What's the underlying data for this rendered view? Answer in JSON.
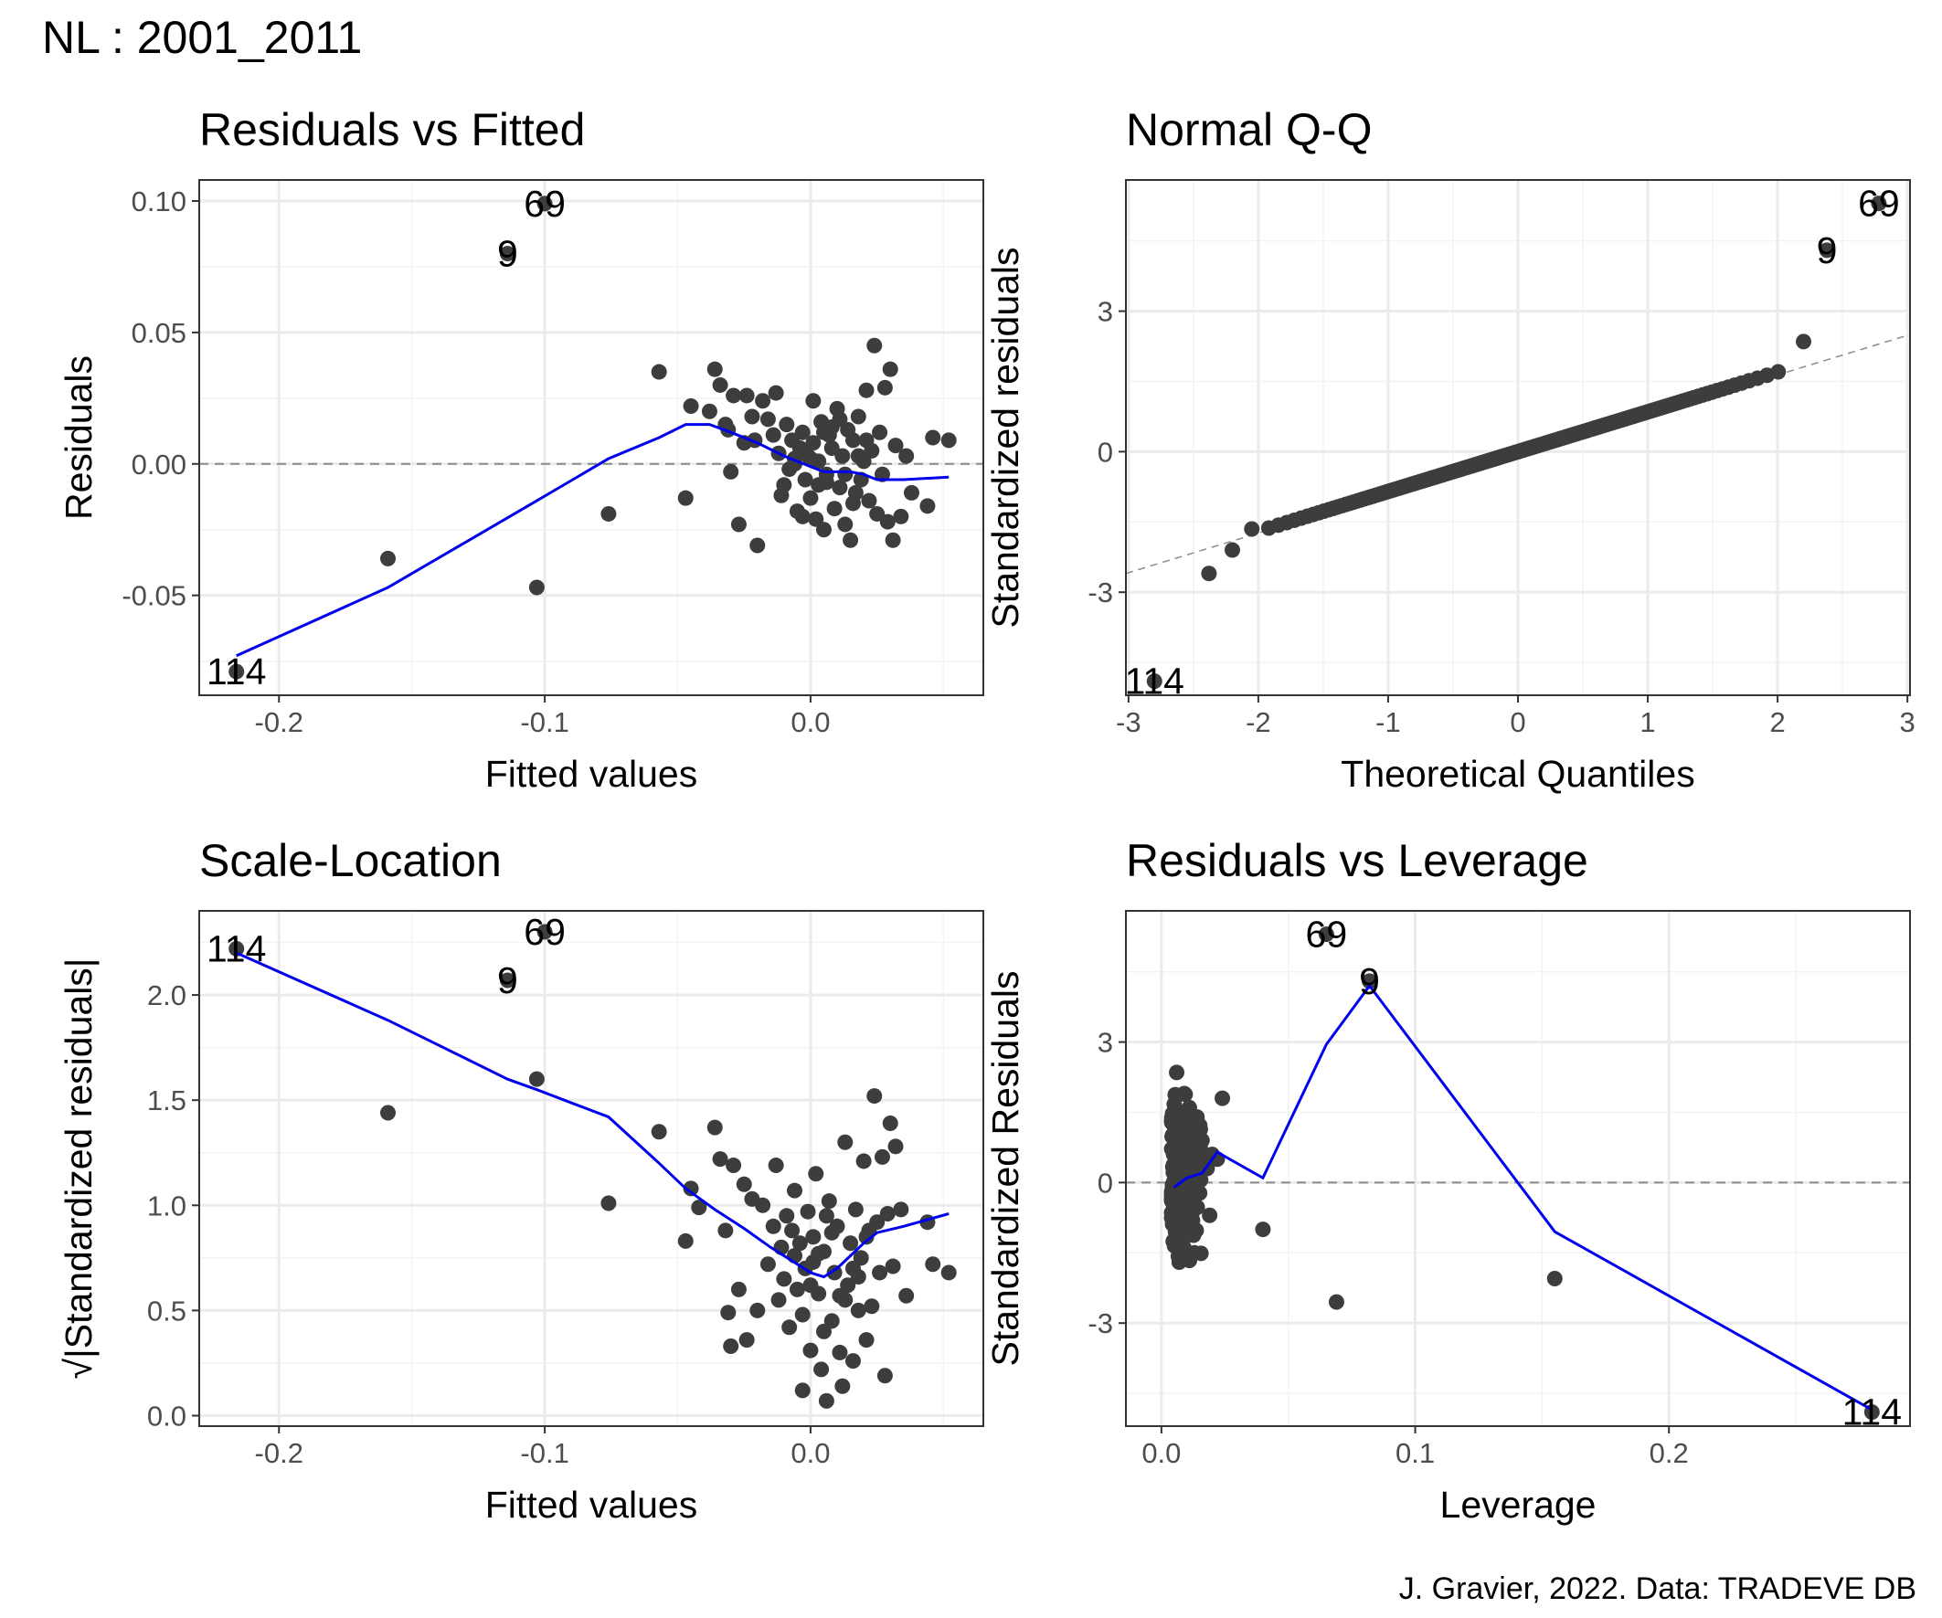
{
  "page": {
    "title": "NL : 2001_2011",
    "caption": "J. Gravier, 2022. Data: TRADEVE DB",
    "colors": {
      "points": "#3d3d3d",
      "smooth": "#0000ee",
      "grid": "#ebebeb",
      "refline": "#8c8c8c"
    }
  },
  "chart_data": [
    {
      "type": "scatter",
      "title": "Residuals vs Fitted",
      "xlabel": "Fitted values",
      "ylabel": "Residuals",
      "xlim": [
        -0.23,
        0.065
      ],
      "ylim": [
        -0.088,
        0.108
      ],
      "xticks": [
        -0.2,
        -0.1,
        0.0
      ],
      "xtick_labels": [
        "-0.2",
        "-0.1",
        "0.0"
      ],
      "yticks": [
        -0.05,
        0.0,
        0.05,
        0.1
      ],
      "ytick_labels": [
        "-0.05",
        "0.00",
        "0.05",
        "0.10"
      ],
      "grid": true,
      "hline": {
        "y": 0,
        "style": "dashed"
      },
      "points": [
        [
          -0.216,
          -0.079
        ],
        [
          -0.159,
          -0.036
        ],
        [
          -0.103,
          -0.047
        ],
        [
          -0.114,
          0.08
        ],
        [
          -0.1,
          0.099
        ],
        [
          -0.076,
          -0.019
        ],
        [
          -0.057,
          0.035
        ],
        [
          -0.047,
          -0.013
        ],
        [
          -0.045,
          0.022
        ],
        [
          -0.038,
          0.02
        ],
        [
          -0.036,
          0.036
        ],
        [
          -0.034,
          0.03
        ],
        [
          -0.032,
          0.015
        ],
        [
          -0.031,
          0.013
        ],
        [
          -0.03,
          -0.003
        ],
        [
          -0.029,
          0.026
        ],
        [
          -0.027,
          -0.023
        ],
        [
          -0.025,
          0.008
        ],
        [
          -0.024,
          0.026
        ],
        [
          -0.022,
          0.018
        ],
        [
          -0.021,
          0.009
        ],
        [
          -0.02,
          -0.031
        ],
        [
          -0.018,
          0.024
        ],
        [
          -0.016,
          0.017
        ],
        [
          -0.014,
          0.011
        ],
        [
          -0.013,
          0.027
        ],
        [
          -0.012,
          0.004
        ],
        [
          -0.011,
          -0.012
        ],
        [
          -0.01,
          -0.008
        ],
        [
          -0.009,
          0.015
        ],
        [
          -0.008,
          -0.002
        ],
        [
          -0.007,
          0.009
        ],
        [
          -0.006,
          0.002
        ],
        [
          -0.005,
          -0.018
        ],
        [
          -0.004,
          0.006
        ],
        [
          -0.003,
          0.012
        ],
        [
          -0.002,
          -0.006
        ],
        [
          -0.001,
          0.003
        ],
        [
          0.0,
          -0.013
        ],
        [
          0.001,
          0.008
        ],
        [
          0.002,
          -0.021
        ],
        [
          0.003,
          0.001
        ],
        [
          0.004,
          0.016
        ],
        [
          0.005,
          -0.025
        ],
        [
          0.006,
          -0.004
        ],
        [
          0.007,
          0.011
        ],
        [
          0.008,
          0.006
        ],
        [
          0.009,
          -0.017
        ],
        [
          0.01,
          0.021
        ],
        [
          0.011,
          -0.009
        ],
        [
          0.012,
          0.003
        ],
        [
          0.013,
          -0.023
        ],
        [
          0.014,
          0.013
        ],
        [
          0.015,
          -0.029
        ],
        [
          0.016,
          0.009
        ],
        [
          0.017,
          -0.011
        ],
        [
          0.018,
          0.018
        ],
        [
          0.019,
          -0.006
        ],
        [
          0.02,
          0.001
        ],
        [
          0.021,
          0.028
        ],
        [
          0.022,
          -0.014
        ],
        [
          0.023,
          0.005
        ],
        [
          0.024,
          0.045
        ],
        [
          0.025,
          -0.019
        ],
        [
          0.026,
          0.012
        ],
        [
          0.027,
          -0.004
        ],
        [
          0.028,
          0.029
        ],
        [
          0.029,
          -0.022
        ],
        [
          0.03,
          0.036
        ],
        [
          0.031,
          -0.029
        ],
        [
          0.032,
          0.007
        ],
        [
          0.034,
          -0.02
        ],
        [
          0.036,
          0.003
        ],
        [
          0.038,
          -0.011
        ],
        [
          0.044,
          -0.016
        ],
        [
          0.046,
          0.01
        ],
        [
          0.052,
          0.009
        ],
        [
          -0.003,
          -0.02
        ],
        [
          0.001,
          0.024
        ],
        [
          0.006,
          -0.007
        ],
        [
          0.011,
          0.017
        ],
        [
          0.016,
          -0.015
        ],
        [
          0.021,
          0.009
        ],
        [
          0.0,
          0.002
        ],
        [
          0.003,
          -0.008
        ],
        [
          0.008,
          0.014
        ],
        [
          0.013,
          -0.004
        ],
        [
          0.018,
          0.003
        ],
        [
          -0.006,
          0.0
        ],
        [
          0.005,
          0.012
        ]
      ],
      "smooth": [
        [
          -0.216,
          -0.073
        ],
        [
          -0.159,
          -0.047
        ],
        [
          -0.103,
          -0.014
        ],
        [
          -0.076,
          0.002
        ],
        [
          -0.057,
          0.01
        ],
        [
          -0.047,
          0.015
        ],
        [
          -0.038,
          0.015
        ],
        [
          -0.03,
          0.012
        ],
        [
          -0.02,
          0.008
        ],
        [
          -0.01,
          0.003
        ],
        [
          0.0,
          -0.001
        ],
        [
          0.005,
          -0.003
        ],
        [
          0.01,
          -0.003
        ],
        [
          0.015,
          -0.003
        ],
        [
          0.02,
          -0.004
        ],
        [
          0.025,
          -0.006
        ],
        [
          0.035,
          -0.006
        ],
        [
          0.052,
          -0.005
        ]
      ],
      "labels": [
        {
          "text": "114",
          "x": -0.216,
          "y": -0.079
        },
        {
          "text": "9",
          "x": -0.114,
          "y": 0.08
        },
        {
          "text": "69",
          "x": -0.1,
          "y": 0.099
        }
      ]
    },
    {
      "type": "scatter",
      "title": "Normal Q-Q",
      "xlabel": "Theoretical Quantiles",
      "ylabel": "Standardized residuals",
      "xlim": [
        -3.02,
        3.02
      ],
      "ylim": [
        -5.2,
        5.8
      ],
      "xticks": [
        -3,
        -2,
        -1,
        0,
        1,
        2,
        3
      ],
      "xtick_labels": [
        "-3",
        "-2",
        "-1",
        "0",
        "1",
        "2",
        "3"
      ],
      "yticks": [
        -3,
        0,
        3
      ],
      "ytick_labels": [
        "-3",
        "0",
        "3"
      ],
      "grid": true,
      "refline": {
        "x0": -3.02,
        "y0": -2.6,
        "x1": 3.02,
        "y1": 2.5,
        "style": "dashed"
      },
      "qq": {
        "n": 200,
        "sd": 0.85
      },
      "extra_points": [
        [
          -2.8,
          -4.9
        ],
        [
          -2.38,
          -2.6
        ],
        [
          -2.2,
          -2.1
        ],
        [
          -2.05,
          -1.65
        ],
        [
          2.2,
          2.35
        ],
        [
          2.38,
          4.3
        ],
        [
          2.78,
          5.3
        ]
      ],
      "labels": [
        {
          "text": "114",
          "x": -2.8,
          "y": -4.9
        },
        {
          "text": "9",
          "x": 2.38,
          "y": 4.3
        },
        {
          "text": "69",
          "x": 2.78,
          "y": 5.3
        }
      ]
    },
    {
      "type": "scatter",
      "title": "Scale-Location",
      "xlabel": "Fitted values",
      "ylabel": "√|Standardized residuals|",
      "xlim": [
        -0.23,
        0.065
      ],
      "ylim": [
        -0.05,
        2.4
      ],
      "xticks": [
        -0.2,
        -0.1,
        0.0
      ],
      "xtick_labels": [
        "-0.2",
        "-0.1",
        "0.0"
      ],
      "yticks": [
        0.0,
        0.5,
        1.0,
        1.5,
        2.0
      ],
      "ytick_labels": [
        "0.0",
        "0.5",
        "1.0",
        "1.5",
        "2.0"
      ],
      "grid": true,
      "points": [
        [
          -0.216,
          2.22
        ],
        [
          -0.159,
          1.44
        ],
        [
          -0.103,
          1.6
        ],
        [
          -0.114,
          2.07
        ],
        [
          -0.1,
          2.3
        ],
        [
          -0.076,
          1.01
        ],
        [
          -0.057,
          1.35
        ],
        [
          -0.047,
          0.83
        ],
        [
          -0.045,
          1.08
        ],
        [
          -0.042,
          0.99
        ],
        [
          -0.036,
          1.37
        ],
        [
          -0.034,
          1.22
        ],
        [
          -0.032,
          0.88
        ],
        [
          -0.031,
          0.49
        ],
        [
          -0.03,
          0.33
        ],
        [
          -0.029,
          1.19
        ],
        [
          -0.027,
          0.6
        ],
        [
          -0.025,
          1.1
        ],
        [
          -0.024,
          0.36
        ],
        [
          -0.022,
          1.03
        ],
        [
          -0.02,
          0.5
        ],
        [
          -0.018,
          1.0
        ],
        [
          -0.016,
          0.72
        ],
        [
          -0.014,
          0.9
        ],
        [
          -0.013,
          1.19
        ],
        [
          -0.012,
          0.55
        ],
        [
          -0.011,
          0.8
        ],
        [
          -0.01,
          0.65
        ],
        [
          -0.009,
          0.95
        ],
        [
          -0.008,
          0.42
        ],
        [
          -0.007,
          0.88
        ],
        [
          -0.006,
          0.76
        ],
        [
          -0.005,
          0.6
        ],
        [
          -0.004,
          0.82
        ],
        [
          -0.003,
          0.12
        ],
        [
          -0.002,
          0.7
        ],
        [
          -0.001,
          0.97
        ],
        [
          0.0,
          0.31
        ],
        [
          0.001,
          0.85
        ],
        [
          0.002,
          1.15
        ],
        [
          0.003,
          0.58
        ],
        [
          0.004,
          0.22
        ],
        [
          0.005,
          0.78
        ],
        [
          0.006,
          0.07
        ],
        [
          0.007,
          1.02
        ],
        [
          0.008,
          0.45
        ],
        [
          0.009,
          0.68
        ],
        [
          0.01,
          0.9
        ],
        [
          0.011,
          0.3
        ],
        [
          0.012,
          0.14
        ],
        [
          0.013,
          1.3
        ],
        [
          0.014,
          0.62
        ],
        [
          0.015,
          0.82
        ],
        [
          0.016,
          0.26
        ],
        [
          0.017,
          0.98
        ],
        [
          0.018,
          0.5
        ],
        [
          0.019,
          0.75
        ],
        [
          0.02,
          1.21
        ],
        [
          0.021,
          0.36
        ],
        [
          0.022,
          0.88
        ],
        [
          0.023,
          0.52
        ],
        [
          0.024,
          1.52
        ],
        [
          0.025,
          0.92
        ],
        [
          0.026,
          0.68
        ],
        [
          0.027,
          1.23
        ],
        [
          0.028,
          0.19
        ],
        [
          0.029,
          0.96
        ],
        [
          0.03,
          1.39
        ],
        [
          0.031,
          0.71
        ],
        [
          0.032,
          1.28
        ],
        [
          0.034,
          0.98
        ],
        [
          0.036,
          0.57
        ],
        [
          0.044,
          0.92
        ],
        [
          0.046,
          0.72
        ],
        [
          0.052,
          0.68
        ],
        [
          -0.003,
          0.48
        ],
        [
          0.001,
          0.73
        ],
        [
          0.006,
          0.95
        ],
        [
          0.011,
          0.57
        ],
        [
          0.016,
          0.7
        ],
        [
          0.021,
          0.85
        ],
        [
          0.0,
          0.62
        ],
        [
          0.003,
          0.77
        ],
        [
          0.008,
          0.87
        ],
        [
          0.013,
          0.55
        ],
        [
          0.018,
          0.66
        ],
        [
          0.005,
          0.4
        ],
        [
          -0.006,
          1.07
        ]
      ],
      "smooth": [
        [
          -0.216,
          2.2
        ],
        [
          -0.159,
          1.88
        ],
        [
          -0.114,
          1.6
        ],
        [
          -0.103,
          1.55
        ],
        [
          -0.076,
          1.42
        ],
        [
          -0.057,
          1.2
        ],
        [
          -0.047,
          1.08
        ],
        [
          -0.036,
          0.98
        ],
        [
          -0.025,
          0.89
        ],
        [
          -0.015,
          0.8
        ],
        [
          -0.005,
          0.72
        ],
        [
          0.0,
          0.68
        ],
        [
          0.005,
          0.66
        ],
        [
          0.01,
          0.7
        ],
        [
          0.015,
          0.76
        ],
        [
          0.02,
          0.82
        ],
        [
          0.025,
          0.87
        ],
        [
          0.035,
          0.9
        ],
        [
          0.052,
          0.96
        ]
      ],
      "labels": [
        {
          "text": "114",
          "x": -0.216,
          "y": 2.22
        },
        {
          "text": "9",
          "x": -0.114,
          "y": 2.07
        },
        {
          "text": "69",
          "x": -0.1,
          "y": 2.3
        }
      ]
    },
    {
      "type": "scatter",
      "title": "Residuals vs Leverage",
      "xlabel": "Leverage",
      "ylabel": "Standardized Residuals",
      "xlim": [
        -0.014,
        0.295
      ],
      "ylim": [
        -5.2,
        5.8
      ],
      "xticks": [
        0.0,
        0.1,
        0.2
      ],
      "xtick_labels": [
        "0.0",
        "0.1",
        "0.2"
      ],
      "yticks": [
        -3,
        0,
        3
      ],
      "ytick_labels": [
        "-3",
        "0",
        "3"
      ],
      "grid": true,
      "hline": {
        "y": 0,
        "style": "dashed"
      },
      "cluster": {
        "x_min": 0.004,
        "x_max": 0.016,
        "y_min": -1.7,
        "y_max": 1.9,
        "n": 160
      },
      "points": [
        [
          0.006,
          2.35
        ],
        [
          0.009,
          1.9
        ],
        [
          0.011,
          1.6
        ],
        [
          0.014,
          1.4
        ],
        [
          0.015,
          1.2
        ],
        [
          0.016,
          0.9
        ],
        [
          0.017,
          0.6
        ],
        [
          0.018,
          0.3
        ],
        [
          0.019,
          -0.7
        ],
        [
          0.02,
          0.6
        ],
        [
          0.022,
          0.5
        ],
        [
          0.024,
          1.8
        ],
        [
          0.013,
          -1.5
        ],
        [
          0.007,
          -1.7
        ],
        [
          0.04,
          -1.0
        ],
        [
          0.069,
          -2.55
        ],
        [
          0.065,
          5.3
        ],
        [
          0.082,
          4.3
        ],
        [
          0.155,
          -2.05
        ],
        [
          0.28,
          -4.9
        ]
      ],
      "smooth": [
        [
          0.005,
          -0.1
        ],
        [
          0.01,
          0.1
        ],
        [
          0.016,
          0.2
        ],
        [
          0.022,
          0.65
        ],
        [
          0.04,
          0.1
        ],
        [
          0.065,
          2.95
        ],
        [
          0.082,
          4.2
        ],
        [
          0.155,
          -1.05
        ],
        [
          0.28,
          -4.85
        ]
      ],
      "labels": [
        {
          "text": "69",
          "x": 0.065,
          "y": 5.3
        },
        {
          "text": "9",
          "x": 0.082,
          "y": 4.3
        },
        {
          "text": "114",
          "x": 0.28,
          "y": -4.9
        }
      ]
    }
  ]
}
